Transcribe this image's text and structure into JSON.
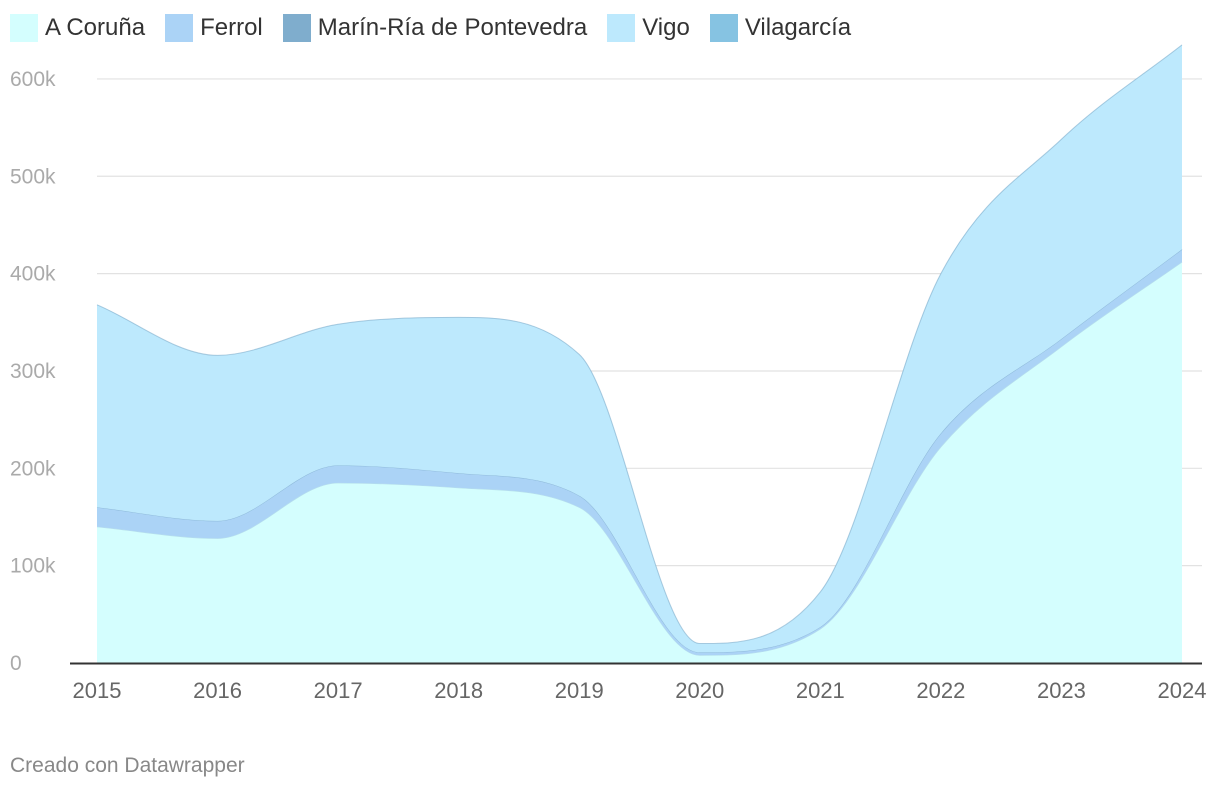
{
  "chart_data": {
    "type": "area",
    "stacked": true,
    "title": "",
    "xlabel": "",
    "ylabel": "",
    "x": [
      2015,
      2016,
      2017,
      2018,
      2019,
      2020,
      2021,
      2022,
      2023,
      2024
    ],
    "x_tick_labels": [
      "2015",
      "2016",
      "2017",
      "2018",
      "2019",
      "2020",
      "2021",
      "2022",
      "2023",
      "2024"
    ],
    "ylim": [
      0,
      640000
    ],
    "y_ticks": [
      0,
      100000,
      200000,
      300000,
      400000,
      500000,
      600000
    ],
    "y_tick_labels": [
      "0",
      "100k",
      "200k",
      "300k",
      "400k",
      "500k",
      "600k"
    ],
    "grid": true,
    "legend_position": "top-left",
    "series": [
      {
        "name": "A Coruña",
        "color": "#d4fefe",
        "values": [
          140000,
          128000,
          185000,
          180000,
          160000,
          8000,
          35000,
          222000,
          325000,
          412000
        ]
      },
      {
        "name": "Ferrol",
        "color": "#abd3f6",
        "values": [
          20000,
          18000,
          18000,
          15000,
          12000,
          3000,
          2000,
          14000,
          8000,
          13000
        ]
      },
      {
        "name": "Marín-Ría de Pontevedra",
        "color": "#7fadcd",
        "values": [
          0,
          0,
          0,
          0,
          0,
          0,
          0,
          0,
          0,
          0
        ]
      },
      {
        "name": "Vigo",
        "color": "#bde9fd",
        "values": [
          208000,
          170000,
          145000,
          160000,
          145000,
          9000,
          36000,
          164000,
          205000,
          210000
        ]
      },
      {
        "name": "Vilagarcía",
        "color": "#86c3e2",
        "values": [
          0,
          0,
          0,
          0,
          0,
          0,
          0,
          0,
          0,
          0
        ]
      }
    ]
  },
  "footer": {
    "credit": "Creado con Datawrapper"
  }
}
